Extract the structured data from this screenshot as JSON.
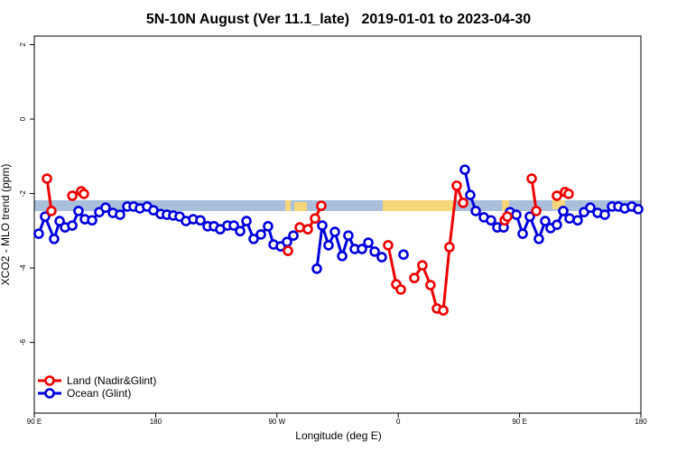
{
  "chart_data": {
    "type": "line",
    "title": "5N-10N August (Ver 11.1_late)   2019-01-01 to 2023-04-30",
    "x_label": "Longitude (deg E)",
    "y_label": "XCO2 - MLO trend (ppm)",
    "xlim": [
      90,
      540
    ],
    "ylim": [
      -7.9,
      2.23
    ],
    "xticks": [
      {
        "value": 90,
        "label": "90 E"
      },
      {
        "value": 180,
        "label": "180"
      },
      {
        "value": 270,
        "label": "90 W"
      },
      {
        "value": 360,
        "label": "0"
      },
      {
        "value": 450,
        "label": "90 E"
      },
      {
        "value": 540,
        "label": "180"
      }
    ],
    "yticks": [
      2,
      0,
      -2,
      -4,
      -6
    ],
    "legend": "bottom-left",
    "series": [
      {
        "name": "Land (Nadir&Glint)",
        "color": "#ee0000",
        "x": [
          99.4,
          102.7,
          null,
          118.2,
          124.8,
          126.8,
          null,
          278.2,
          null,
          286.9,
          292.9,
          298.3,
          302.9,
          null,
          352.5,
          358.5,
          361.9,
          null,
          371.9,
          377.9,
          383.9,
          388.7,
          393.4,
          398.0,
          403.4,
          408.1,
          null,
          438.9,
          440.9,
          null,
          459.0,
          462.4,
          null,
          477.7,
          483.7,
          486.4
        ],
        "values": [
          -1.6,
          -2.47,
          null,
          -2.06,
          -1.94,
          -2.01,
          null,
          -3.54,
          null,
          -2.91,
          -2.96,
          -2.67,
          -2.33,
          null,
          -3.39,
          -4.44,
          -4.58,
          null,
          -4.27,
          -3.93,
          -4.46,
          -5.09,
          -5.14,
          -3.44,
          -1.79,
          -2.25,
          null,
          -2.72,
          -2.62,
          null,
          -1.6,
          -2.47,
          null,
          -2.06,
          -1.96,
          -2.01
        ]
      },
      {
        "name": "Ocean (Glint)",
        "color": "#0000dd",
        "x": [
          93.3,
          98.0,
          104.7,
          108.8,
          112.8,
          118.2,
          122.8,
          127.5,
          132.9,
          138.2,
          142.9,
          148.3,
          153.6,
          159.0,
          163.7,
          168.3,
          173.7,
          178.4,
          183.8,
          188.4,
          193.1,
          197.8,
          202.5,
          207.9,
          213.2,
          218.6,
          223.3,
          227.9,
          233.3,
          238.0,
          242.7,
          247.4,
          252.7,
          258.1,
          263.4,
          267.5,
          272.8,
          277.5,
          282.2,
          null,
          299.6,
          303.6,
          308.3,
          313.0,
          318.4,
          323.0,
          327.7,
          333.1,
          337.8,
          342.5,
          347.8,
          null,
          363.9,
          null,
          409.4,
          413.4,
          417.5,
          423.5,
          428.8,
          433.5,
          438.2,
          442.9,
          447.6,
          452.3,
          457.6,
          464.3,
          469.0,
          473.0,
          477.7,
          482.4,
          487.1,
          493.1,
          497.8,
          502.5,
          507.9,
          513.2,
          518.6,
          523.3,
          528.0,
          533.3,
          538.0
        ],
        "values": [
          -3.08,
          -2.62,
          -3.22,
          -2.74,
          -2.91,
          -2.86,
          -2.47,
          -2.69,
          -2.72,
          -2.5,
          -2.38,
          -2.52,
          -2.57,
          -2.35,
          -2.35,
          -2.4,
          -2.35,
          -2.45,
          -2.55,
          -2.57,
          -2.59,
          -2.62,
          -2.74,
          -2.69,
          -2.72,
          -2.88,
          -2.88,
          -2.96,
          -2.86,
          -2.86,
          -3.01,
          -2.74,
          -3.22,
          -3.1,
          -2.88,
          -3.37,
          -3.42,
          -3.3,
          -3.13,
          null,
          -4.02,
          -2.86,
          -3.39,
          -3.03,
          -3.68,
          -3.13,
          -3.49,
          -3.49,
          -3.32,
          -3.56,
          -3.71,
          null,
          -3.64,
          null,
          -1.36,
          -2.04,
          -2.47,
          -2.64,
          -2.72,
          -2.91,
          -2.91,
          -2.5,
          -2.57,
          -3.08,
          -2.62,
          -3.22,
          -2.74,
          -2.93,
          -2.84,
          -2.47,
          -2.67,
          -2.72,
          -2.5,
          -2.38,
          -2.52,
          -2.57,
          -2.35,
          -2.35,
          -2.4,
          -2.35,
          -2.42
        ]
      }
    ]
  }
}
